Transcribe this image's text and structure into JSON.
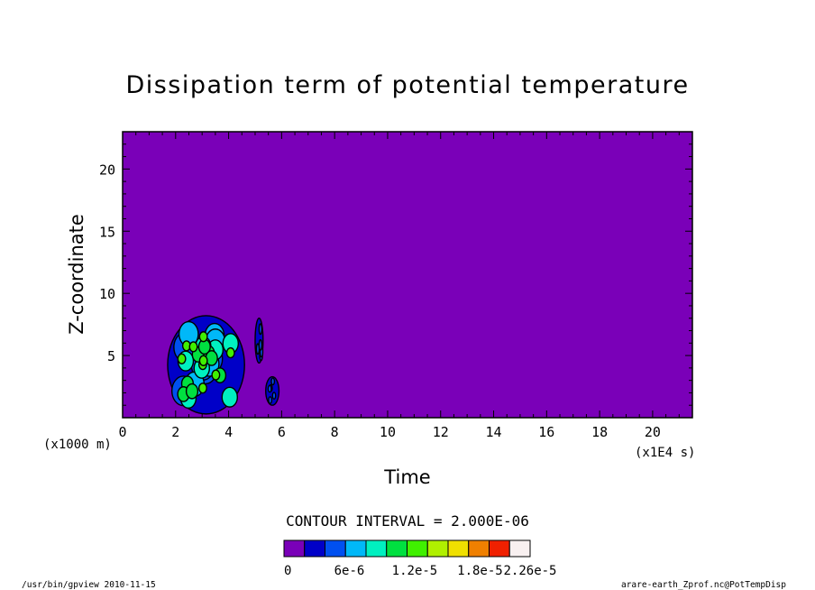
{
  "chart_data": {
    "type": "heatmap",
    "title": "Dissipation term of potential temperature",
    "xlabel": "Time",
    "ylabel": "Z-coordinate",
    "x_unit": "(x1E4 s)",
    "y_unit": "(x1000 m)",
    "xlim": [
      0,
      21.5
    ],
    "ylim": [
      0,
      23
    ],
    "x_ticks": [
      0,
      2,
      4,
      6,
      8,
      10,
      12,
      14,
      16,
      18,
      20
    ],
    "y_ticks": [
      5,
      10,
      15,
      20
    ],
    "background_level": 0,
    "contour_interval_label": "CONTOUR INTERVAL = 2.000E-06",
    "colorbar": {
      "colors": [
        "#7a00b8",
        "#0000c8",
        "#0050f0",
        "#00b8f8",
        "#00f0c0",
        "#00e040",
        "#40f000",
        "#b0f000",
        "#f0e000",
        "#f08000",
        "#f02000",
        "#f8f0f0"
      ],
      "tick_labels": [
        "0",
        "6e-6",
        "1.2e-5",
        "1.8e-5",
        "2.26e-5"
      ],
      "tick_values": [
        0,
        6e-06,
        1.2e-05,
        1.8e-05,
        2.26e-05
      ],
      "vmax": 2.26e-05
    },
    "features": [
      {
        "name": "main-cluster",
        "level": 1.2e-05,
        "t_range": [
          1.7,
          4.6
        ],
        "z_range": [
          0.3,
          8.2
        ]
      },
      {
        "name": "isolated-cell-5",
        "level": 4e-06,
        "t_range": [
          5.0,
          5.3
        ],
        "z_range": [
          4.4,
          8.0
        ]
      },
      {
        "name": "isolated-cell-6",
        "level": 4e-06,
        "t_range": [
          5.4,
          5.9
        ],
        "z_range": [
          1.0,
          3.3
        ]
      }
    ]
  },
  "footer": {
    "left": "/usr/bin/gpview   2010-11-15",
    "right": "arare-earth_Zprof.nc@PotTempDisp"
  }
}
